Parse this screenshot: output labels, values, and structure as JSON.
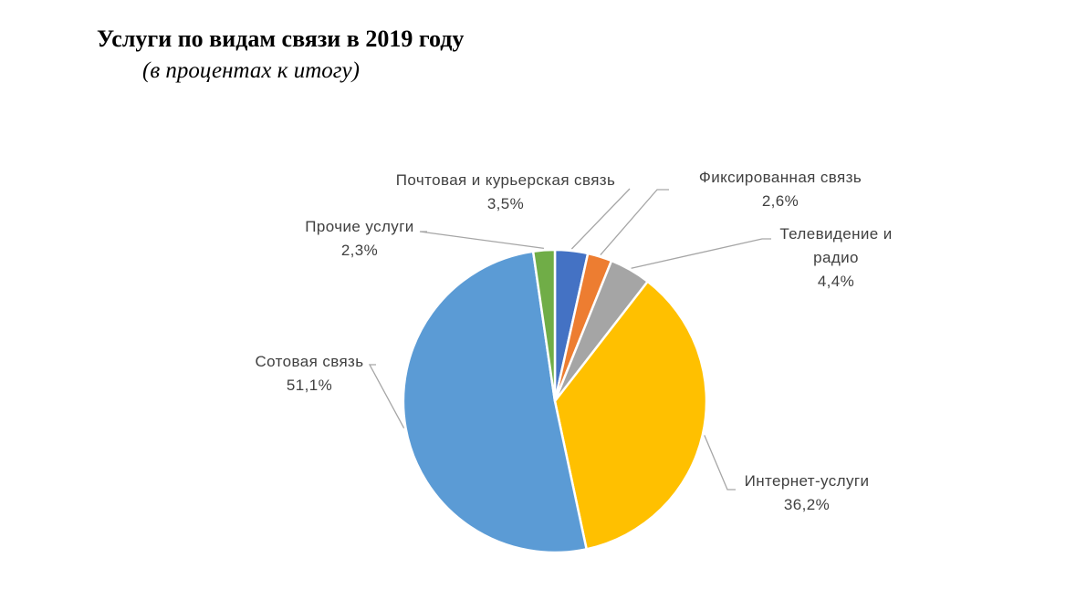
{
  "chart_data": {
    "type": "pie",
    "title": "Услуги по видам связи в 2019 году",
    "subtitle": "(в процентах к итогу)",
    "slices": [
      {
        "label_lines": [
          "Почтовая и курьерская связь"
        ],
        "value": 3.5,
        "value_label": "3,5%",
        "color": "#4472C4"
      },
      {
        "label_lines": [
          "Фиксированная связь"
        ],
        "value": 2.6,
        "value_label": "2,6%",
        "color": "#ED7D31"
      },
      {
        "label_lines": [
          "Телевидение и",
          "радио"
        ],
        "value": 4.4,
        "value_label": "4,4%",
        "color": "#A5A5A5"
      },
      {
        "label_lines": [
          "Интернет-услуги"
        ],
        "value": 36.2,
        "value_label": "36,2%",
        "color": "#FFC000"
      },
      {
        "label_lines": [
          "Сотовая связь"
        ],
        "value": 51.1,
        "value_label": "51,1%",
        "color": "#5B9BD5"
      },
      {
        "label_lines": [
          "Прочие услуги"
        ],
        "value": 2.3,
        "value_label": "2,3%",
        "color": "#70AD47"
      }
    ]
  }
}
